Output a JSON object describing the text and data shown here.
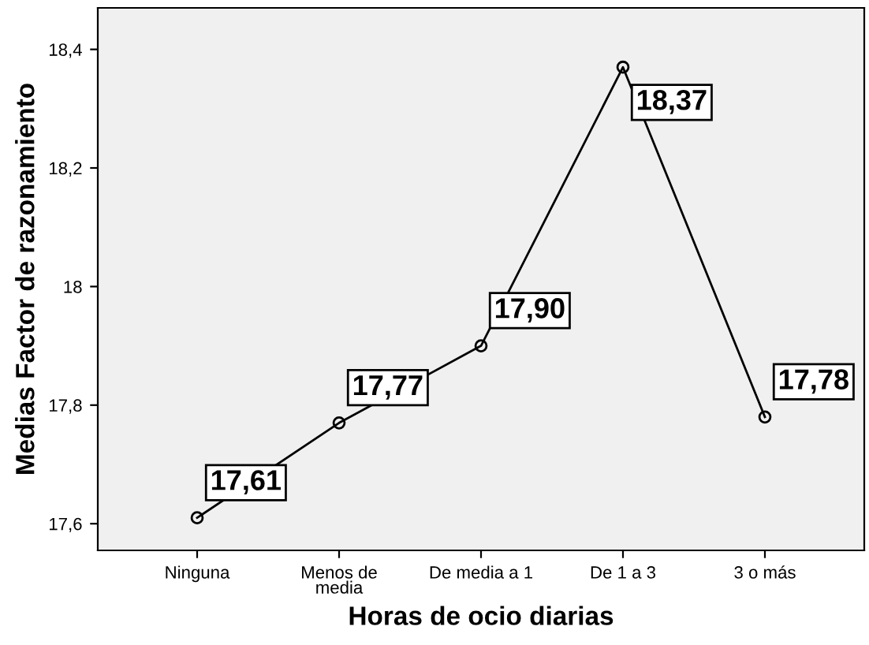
{
  "chart_data": {
    "type": "line",
    "xlabel": "Horas de ocio diarias",
    "ylabel": "Medias Factor de razonamiento",
    "categories": [
      "Ninguna",
      "Menos de\nmedia",
      "De media a 1",
      "De 1 a 3",
      "3 o más"
    ],
    "series": [
      {
        "color": "#000000",
        "values": [
          17.61,
          17.77,
          17.9,
          18.37,
          17.78
        ],
        "value_labels": [
          "17,61",
          "17,77",
          "17,90",
          "18,37",
          "17,78"
        ]
      }
    ],
    "ylim": [
      17.555,
      18.47
    ],
    "yticks": [
      {
        "value": 17.6,
        "label": "17,6"
      },
      {
        "value": 17.8,
        "label": "17,8"
      },
      18,
      {
        "value": 18.2,
        "label": "18,2"
      },
      {
        "value": 18.4,
        "label": "18,4"
      }
    ],
    "marker": "circle",
    "line_style": "solid",
    "grid": false,
    "legend": false
  }
}
